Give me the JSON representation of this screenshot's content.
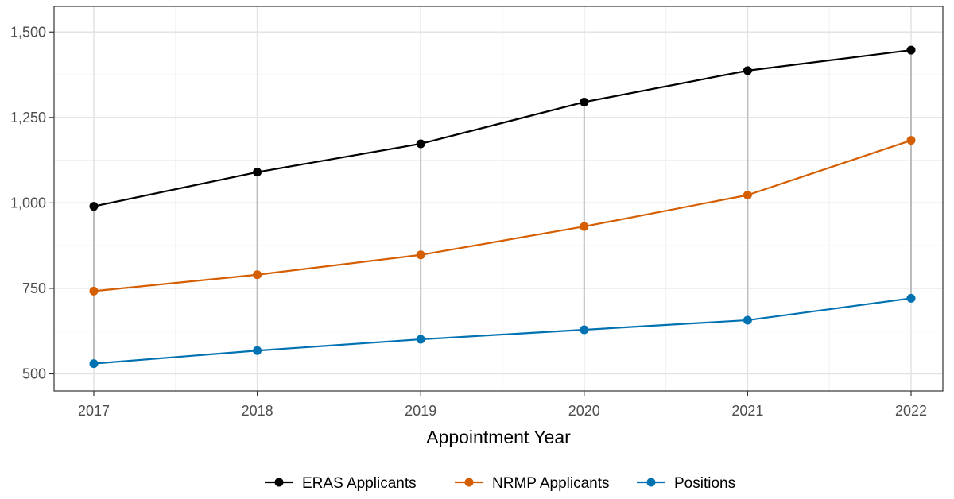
{
  "chart_data": {
    "type": "line",
    "title": "",
    "xlabel": "Appointment Year",
    "ylabel": "",
    "x": [
      "2017",
      "2018",
      "2019",
      "2020",
      "2021",
      "2022"
    ],
    "ylim": [
      450,
      1575
    ],
    "yticks": [
      500,
      750,
      1000,
      1250,
      1500
    ],
    "ytick_labels": [
      "500",
      "750",
      "1,000",
      "1,250",
      "1,500"
    ],
    "grid": true,
    "legend_position": "bottom",
    "connector_color": "#bdbdbd",
    "series": [
      {
        "name": "ERAS Applicants",
        "color": "#000000",
        "values": [
          990,
          1090,
          1173,
          1295,
          1387,
          1447
        ]
      },
      {
        "name": "NRMP Applicants",
        "color": "#d55e00",
        "values": [
          742,
          790,
          848,
          931,
          1023,
          1183
        ]
      },
      {
        "name": "Positions",
        "color": "#0072b2",
        "values": [
          530,
          568,
          601,
          629,
          657,
          721
        ]
      }
    ]
  }
}
